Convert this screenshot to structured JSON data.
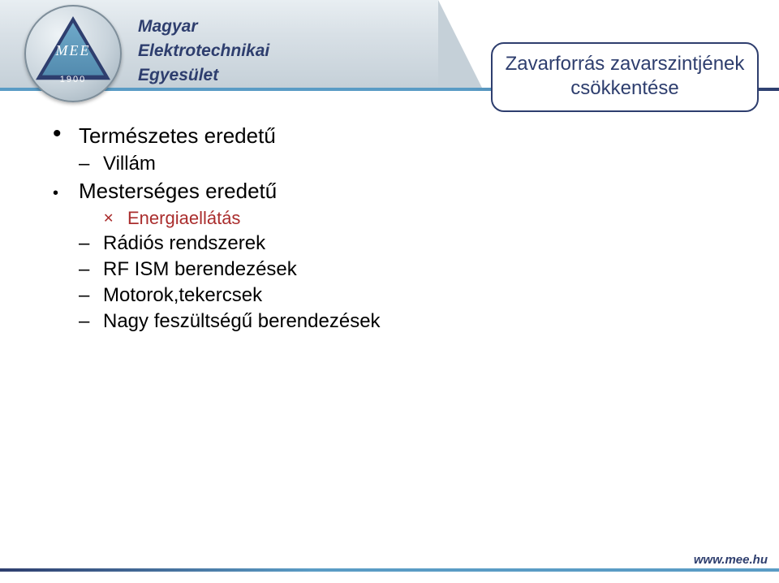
{
  "logo": {
    "monogram": "MEE",
    "year": "1900"
  },
  "org": {
    "line1": "Magyar",
    "line2": "Elektrotechnikai",
    "line3": "Egyesület"
  },
  "callout": {
    "line1": "Zavarforrás zavarszintjének",
    "line2": "csökkentése"
  },
  "content": {
    "item1": "Természetes eredetű",
    "item1_sub1": "Villám",
    "item2": "Mesterséges eredetű",
    "item2_sub1": "Energiaellátás",
    "item2_sub2": "Rádiós rendszerek",
    "item2_sub3": "RF ISM berendezések",
    "item2_sub4": "Motorok,tekercsek",
    "item2_sub5": "Nagy feszültségű berendezések"
  },
  "footer": {
    "url": "www.mee.hu"
  },
  "style": {
    "brand_dark": "#2e3e6e",
    "brand_light": "#5a9cc5",
    "accent_red": "#aa2d2d",
    "background": "#ffffff"
  }
}
